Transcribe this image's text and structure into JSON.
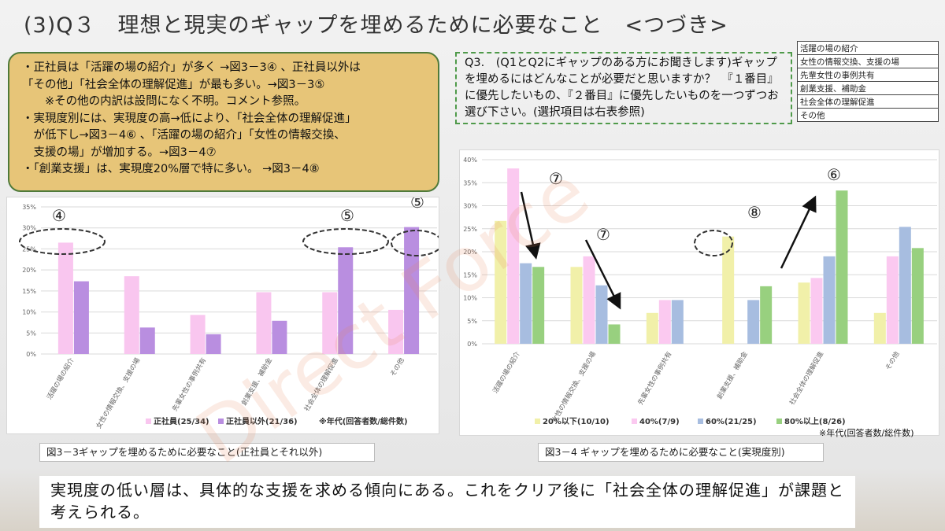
{
  "title": "(3)Q３　理想と現実のギャップを埋めるために必要なこと　<つづき>",
  "notes": [
    "・正社員は「活躍の場の紹介」が多く →図3－3④ 、正社員以外は",
    "「その他」「社会全体の理解促進」が最も多い。→図3－3⑤",
    "　　※その他の内訳は設問になく不明。コメント参照。",
    "・実現度別には、実現度の高→低により、「社会全体の理解促進」",
    "　が低下し→図3－4⑥ 、「活躍の場の紹介」「女性の情報交換、",
    "　支援の場」が増加する。→図3－4⑦",
    "・「創業支援」は、実現度20%層で特に多い。 →図3－4⑧"
  ],
  "question": "Q3.　(Q1とQ2にギャップのある方にお聞きします)ギャップを埋めるにはどんなことが必要だと思いますか？　『１番目』に優先したいもの、『２番目』に優先したいものを一つずつお選び下さい。(選択項目は右表参照)",
  "options_table": [
    "活躍の場の紹介",
    "女性の情報交換、支援の場",
    "先輩女性の事例共有",
    "創業支援、補助金",
    "社会全体の理解促進",
    "その他"
  ],
  "caption1": "図3－3ギャップを埋めるために必要なこと(正社員とそれ以外)",
  "caption2": "図3－4 ギャップを埋めるために必要なこと(実現度別)",
  "note1": "※年代(回答者数/総件数)",
  "note2": "※年代(回答者数/総件数)",
  "bottom_text": "実現度の低い層は、具体的な支援を求める傾向にある。これをクリア後に「社会全体の理解促進」が課題と考えられる。",
  "watermark": "Direct Force",
  "colors": {
    "pink": "#f9c6ef",
    "purple": "#b98ee0",
    "yellow": "#f1f0a9",
    "lightpink": "#fbc9f0",
    "blue": "#a7bde0",
    "green": "#98d07f",
    "notes_bg": "#e7c578",
    "border_green": "#4f7a3a"
  },
  "chart_data": [
    {
      "type": "bar",
      "categories": [
        "活躍の場の紹介",
        "女性の情報交換、支援の場",
        "先輩女性の事例共有",
        "創業支援、補助金",
        "社会全体の理解促進",
        "その他"
      ],
      "series": [
        {
          "name": "正社員(25/34)",
          "color": "#f9c6ef",
          "values": [
            26.5,
            18.5,
            9.3,
            14.7,
            14.7,
            10.5
          ]
        },
        {
          "name": "正社員以外(21/36)",
          "color": "#b98ee0",
          "values": [
            17.3,
            6.3,
            4.7,
            7.9,
            25.4,
            30.2
          ]
        }
      ],
      "ylim": [
        0,
        35
      ],
      "yticks": [
        "0%",
        "5%",
        "10%",
        "15%",
        "20%",
        "25%",
        "30%",
        "35%"
      ],
      "annotations": [
        "④",
        "⑤",
        "⑤"
      ]
    },
    {
      "type": "bar",
      "categories": [
        "活躍の場の紹介",
        "女性の情報交換、支援の場",
        "先輩女性の事例共有",
        "創業支援、補助金",
        "社会全体の理解促進",
        "その他"
      ],
      "series": [
        {
          "name": "20%以下(10/10)",
          "color": "#f1f0a9",
          "values": [
            26.7,
            16.7,
            6.7,
            23.3,
            13.3,
            6.7
          ]
        },
        {
          "name": "40%(7/9)",
          "color": "#fbc9f0",
          "values": [
            38.1,
            19.0,
            9.5,
            0,
            14.3,
            19.0
          ]
        },
        {
          "name": "60%(21/25)",
          "color": "#a7bde0",
          "values": [
            17.5,
            12.7,
            9.5,
            9.5,
            19.0,
            25.4
          ]
        },
        {
          "name": "80%以上(8/26)",
          "color": "#98d07f",
          "values": [
            16.7,
            4.2,
            0,
            12.5,
            33.3,
            20.8
          ]
        }
      ],
      "ylim": [
        0,
        40
      ],
      "yticks": [
        "0%",
        "5%",
        "10%",
        "15%",
        "20%",
        "25%",
        "30%",
        "35%",
        "40%"
      ],
      "annotations": [
        "⑦",
        "⑦",
        "⑧",
        "⑥"
      ]
    }
  ]
}
